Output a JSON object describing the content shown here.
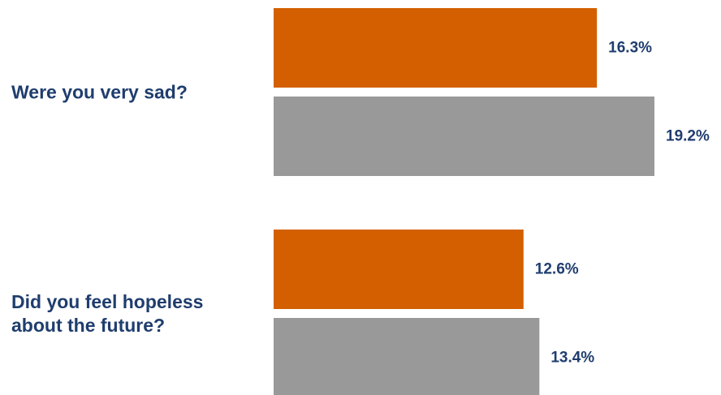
{
  "chart_data": {
    "type": "bar",
    "orientation": "horizontal",
    "categories": [
      [
        "Were you very sad?"
      ],
      [
        "Did you feel hopeless",
        "about the future?"
      ]
    ],
    "series": [
      {
        "values": [
          16.3,
          12.6
        ],
        "labels": [
          "16.3%",
          "12.6%"
        ]
      },
      {
        "values": [
          19.2,
          13.4
        ],
        "labels": [
          "19.2%",
          "13.4%"
        ]
      }
    ],
    "xlim": [
      0,
      19.2
    ],
    "grid": false,
    "legend": "none"
  },
  "colors": {
    "series": [
      "#d35f00",
      "#999999"
    ],
    "label_text": "#1f3d6e"
  }
}
